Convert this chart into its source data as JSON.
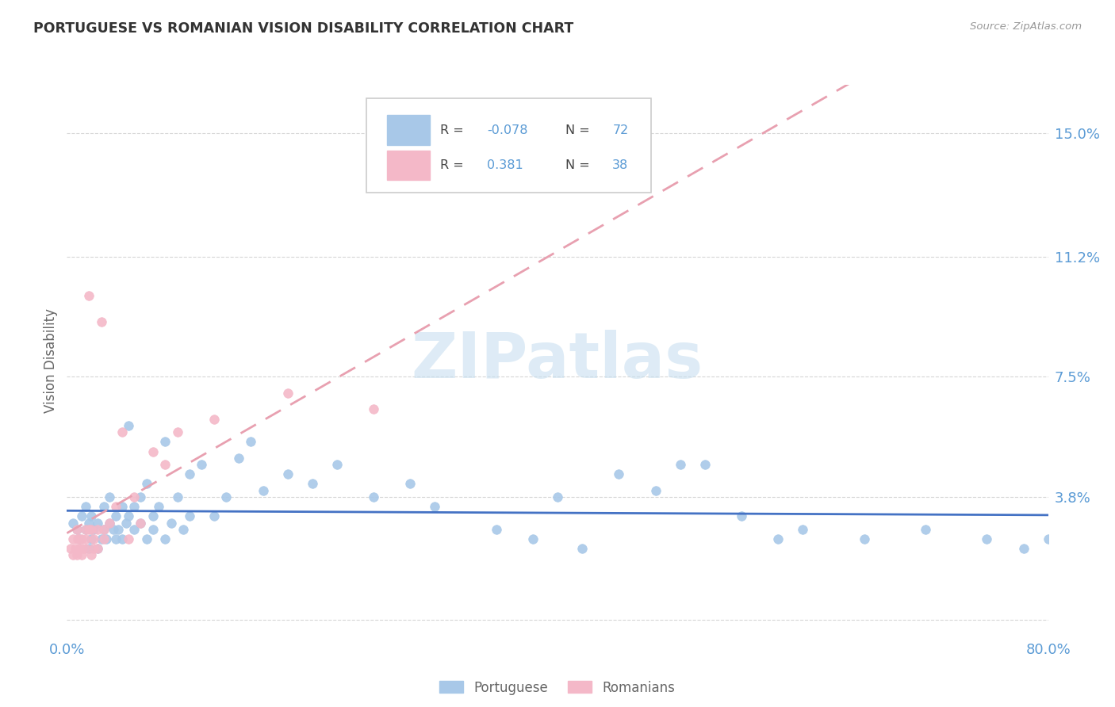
{
  "title": "PORTUGUESE VS ROMANIAN VISION DISABILITY CORRELATION CHART",
  "source": "Source: ZipAtlas.com",
  "ylabel": "Vision Disability",
  "xlim": [
    0.0,
    0.8
  ],
  "ylim": [
    -0.005,
    0.165
  ],
  "yticks": [
    0.0,
    0.038,
    0.075,
    0.112,
    0.15
  ],
  "ytick_labels": [
    "",
    "3.8%",
    "7.5%",
    "11.2%",
    "15.0%"
  ],
  "xticks": [
    0.0,
    0.8
  ],
  "xtick_labels": [
    "0.0%",
    "80.0%"
  ],
  "background_color": "#ffffff",
  "grid_color": "#cccccc",
  "portuguese_color": "#a8c8e8",
  "romanian_color": "#f4b8c8",
  "portuguese_line_color": "#4472c4",
  "romanian_line_color": "#e8a0b0",
  "axis_color": "#5b9bd5",
  "watermark_color": "#c8dff0",
  "portuguese_scatter_x": [
    0.005,
    0.008,
    0.01,
    0.012,
    0.015,
    0.015,
    0.018,
    0.018,
    0.02,
    0.02,
    0.022,
    0.025,
    0.025,
    0.028,
    0.03,
    0.03,
    0.032,
    0.035,
    0.035,
    0.038,
    0.04,
    0.04,
    0.042,
    0.045,
    0.045,
    0.048,
    0.05,
    0.05,
    0.055,
    0.055,
    0.06,
    0.06,
    0.065,
    0.065,
    0.07,
    0.07,
    0.075,
    0.08,
    0.08,
    0.085,
    0.09,
    0.095,
    0.1,
    0.1,
    0.11,
    0.12,
    0.13,
    0.14,
    0.15,
    0.16,
    0.18,
    0.2,
    0.22,
    0.25,
    0.28,
    0.3,
    0.35,
    0.38,
    0.4,
    0.42,
    0.45,
    0.48,
    0.5,
    0.52,
    0.55,
    0.58,
    0.6,
    0.65,
    0.7,
    0.75,
    0.78,
    0.8
  ],
  "portuguese_scatter_y": [
    0.03,
    0.028,
    0.025,
    0.032,
    0.028,
    0.035,
    0.022,
    0.03,
    0.025,
    0.032,
    0.028,
    0.022,
    0.03,
    0.025,
    0.028,
    0.035,
    0.025,
    0.03,
    0.038,
    0.028,
    0.025,
    0.032,
    0.028,
    0.035,
    0.025,
    0.03,
    0.06,
    0.032,
    0.035,
    0.028,
    0.038,
    0.03,
    0.042,
    0.025,
    0.032,
    0.028,
    0.035,
    0.025,
    0.055,
    0.03,
    0.038,
    0.028,
    0.032,
    0.045,
    0.048,
    0.032,
    0.038,
    0.05,
    0.055,
    0.04,
    0.045,
    0.042,
    0.048,
    0.038,
    0.042,
    0.035,
    0.028,
    0.025,
    0.038,
    0.022,
    0.045,
    0.04,
    0.048,
    0.048,
    0.032,
    0.025,
    0.028,
    0.025,
    0.028,
    0.025,
    0.022,
    0.025
  ],
  "romanian_scatter_x": [
    0.003,
    0.005,
    0.005,
    0.007,
    0.008,
    0.008,
    0.009,
    0.01,
    0.01,
    0.012,
    0.012,
    0.013,
    0.015,
    0.015,
    0.015,
    0.018,
    0.018,
    0.02,
    0.02,
    0.022,
    0.022,
    0.025,
    0.025,
    0.028,
    0.03,
    0.03,
    0.035,
    0.04,
    0.045,
    0.05,
    0.055,
    0.06,
    0.07,
    0.08,
    0.09,
    0.12,
    0.18,
    0.25
  ],
  "romanian_scatter_y": [
    0.022,
    0.02,
    0.025,
    0.022,
    0.028,
    0.02,
    0.025,
    0.022,
    0.025,
    0.02,
    0.025,
    0.022,
    0.028,
    0.022,
    0.025,
    0.028,
    0.1,
    0.02,
    0.028,
    0.025,
    0.022,
    0.028,
    0.022,
    0.092,
    0.025,
    0.028,
    0.03,
    0.035,
    0.058,
    0.025,
    0.038,
    0.03,
    0.052,
    0.048,
    0.058,
    0.062,
    0.07,
    0.065
  ]
}
